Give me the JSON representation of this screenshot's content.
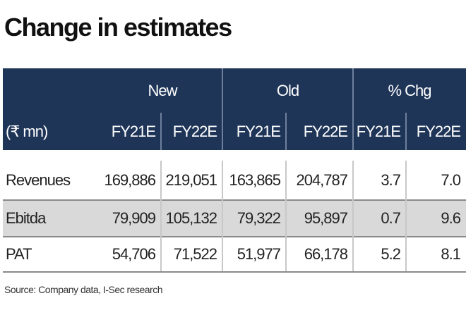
{
  "header": {
    "title": "Change in estimates"
  },
  "table": {
    "groups": [
      "New",
      "Old",
      "% Chg"
    ],
    "unit": "(₹ mn)",
    "columns": [
      "FY21E",
      "FY22E",
      "FY21E",
      "FY22E",
      "FY21E",
      "FY22E"
    ],
    "rows": [
      [
        "Revenues",
        "169,886",
        "219,051",
        "163,865",
        "204,787",
        "3.7",
        "7.0"
      ],
      [
        "Ebitda",
        "79,909",
        "105,132",
        "79,322",
        "95,897",
        "0.7",
        "9.6"
      ],
      [
        "PAT",
        "54,706",
        "71,522",
        "51,977",
        "66,178",
        "5.2",
        "8.1"
      ]
    ]
  },
  "footer": {
    "source": "Source: Company data, I-Sec research"
  }
}
